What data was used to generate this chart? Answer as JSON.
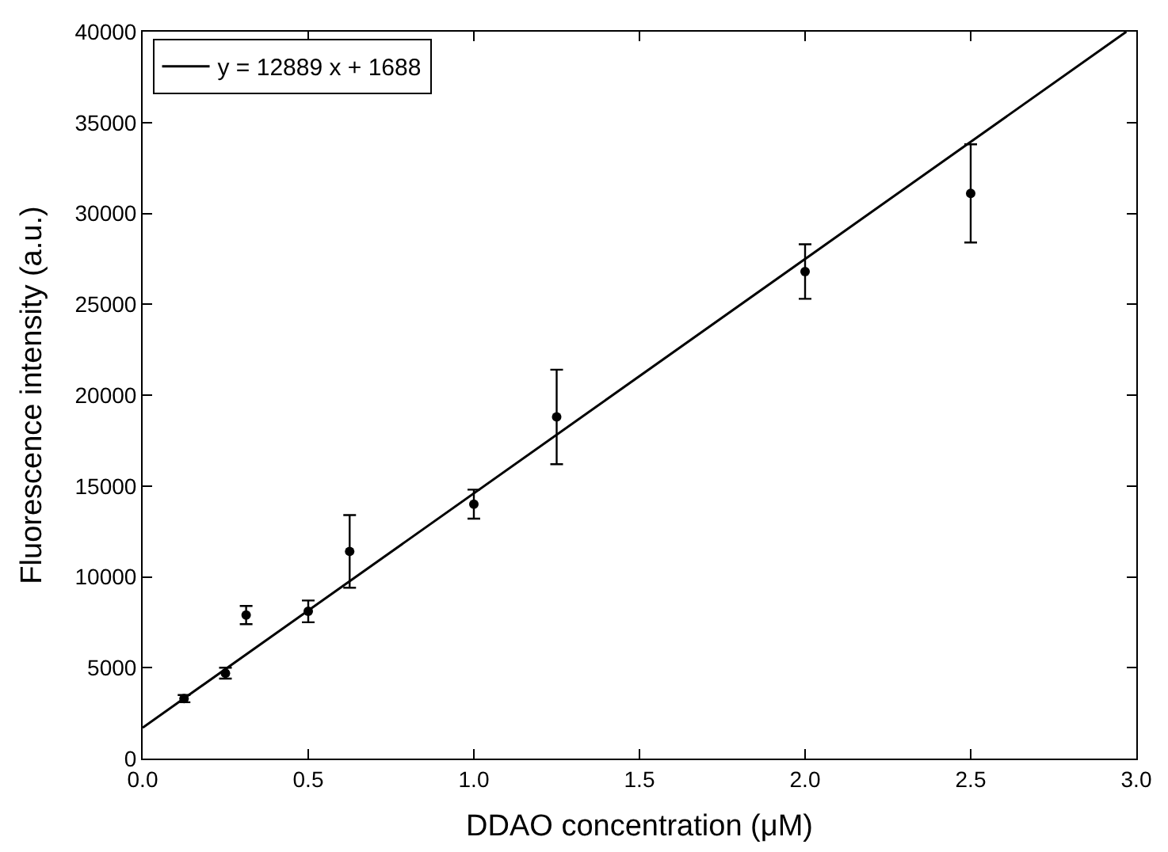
{
  "chart_data": {
    "type": "scatter",
    "xlabel": "DDAO concentration (μM)",
    "ylabel": "Fluorescence intensity (a.u.)",
    "x": [
      0.125,
      0.25,
      0.3125,
      0.5,
      0.625,
      1.0,
      1.25,
      2.0,
      2.5
    ],
    "series": [
      {
        "color": "#000000",
        "marker": "circle",
        "values": [
          3300,
          4700,
          7900,
          8100,
          11400,
          14000,
          18800,
          26800,
          31100
        ],
        "errors": [
          200,
          300,
          500,
          600,
          2000,
          800,
          2600,
          1500,
          2700
        ]
      },
      {
        "type": "line",
        "name": "y = 12889 x + 1688",
        "color": "#000000",
        "line_style": "solid",
        "x": [
          0,
          2.97
        ],
        "values": [
          1700,
          40000
        ]
      }
    ],
    "xlim": [
      0,
      3.0
    ],
    "ylim": [
      0,
      40000
    ],
    "xticks": [
      {
        "value": 0,
        "label": "0.0"
      },
      {
        "value": 0.5,
        "label": "0.5"
      },
      {
        "value": 1.0,
        "label": "1.0"
      },
      {
        "value": 1.5,
        "label": "1.5"
      },
      {
        "value": 2.0,
        "label": "2.0"
      },
      {
        "value": 2.5,
        "label": "2.5"
      },
      {
        "value": 3.0,
        "label": "3.0"
      }
    ],
    "yticks": [
      0,
      5000,
      10000,
      15000,
      20000,
      25000,
      30000,
      35000,
      40000
    ],
    "legend": "top left"
  }
}
